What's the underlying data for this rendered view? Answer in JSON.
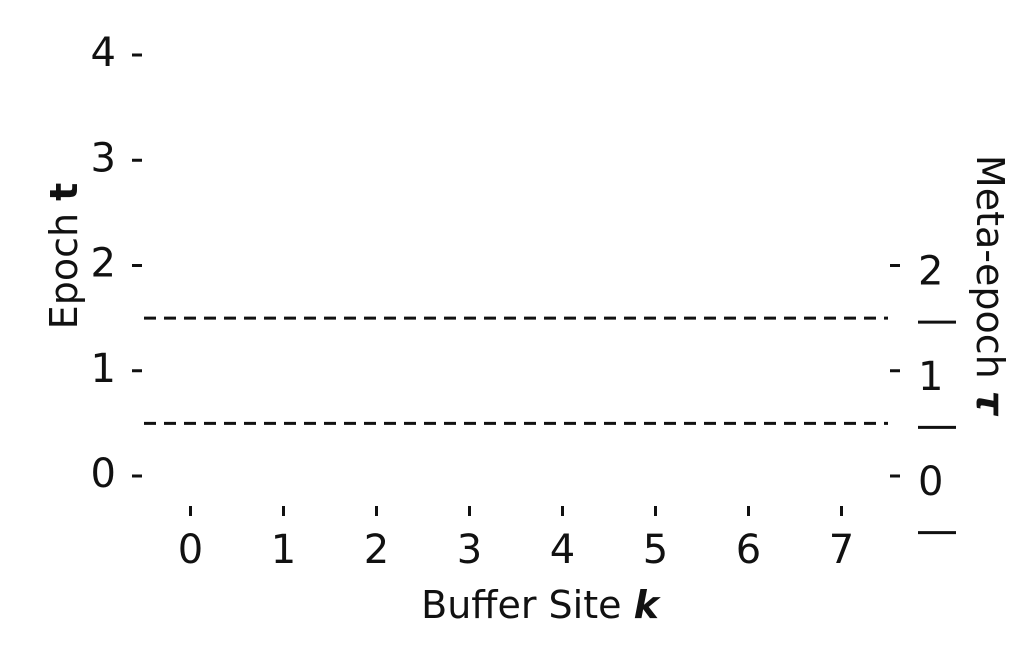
{
  "chart_data": {
    "type": "line",
    "x": [
      0,
      1,
      2,
      3,
      4,
      5,
      6,
      7
    ],
    "xticks": [
      "0",
      "1",
      "2",
      "3",
      "4",
      "5",
      "6",
      "7"
    ],
    "xlim": [
      -0.5,
      7.5
    ],
    "xlabel": "Buffer Site",
    "xlabel_symbol": "k",
    "yticks": [
      "0",
      "1",
      "2",
      "3",
      "4"
    ],
    "ylim": [
      0,
      4
    ],
    "ylabel": "Epoch",
    "ylabel_symbol": "t",
    "y2label": "Meta-epoch",
    "y2label_symbol": "τ",
    "y2ticks": [
      {
        "label": "0",
        "y": 0
      },
      {
        "label": "1",
        "y": 1
      },
      {
        "label": "2",
        "y": 2
      }
    ],
    "meta_epoch_boundaries": [
      -0.5,
      0.5,
      1.5
    ],
    "dashed_lines_y": [
      0.5,
      1.5
    ],
    "series": [],
    "grid": false,
    "legend": "none"
  }
}
